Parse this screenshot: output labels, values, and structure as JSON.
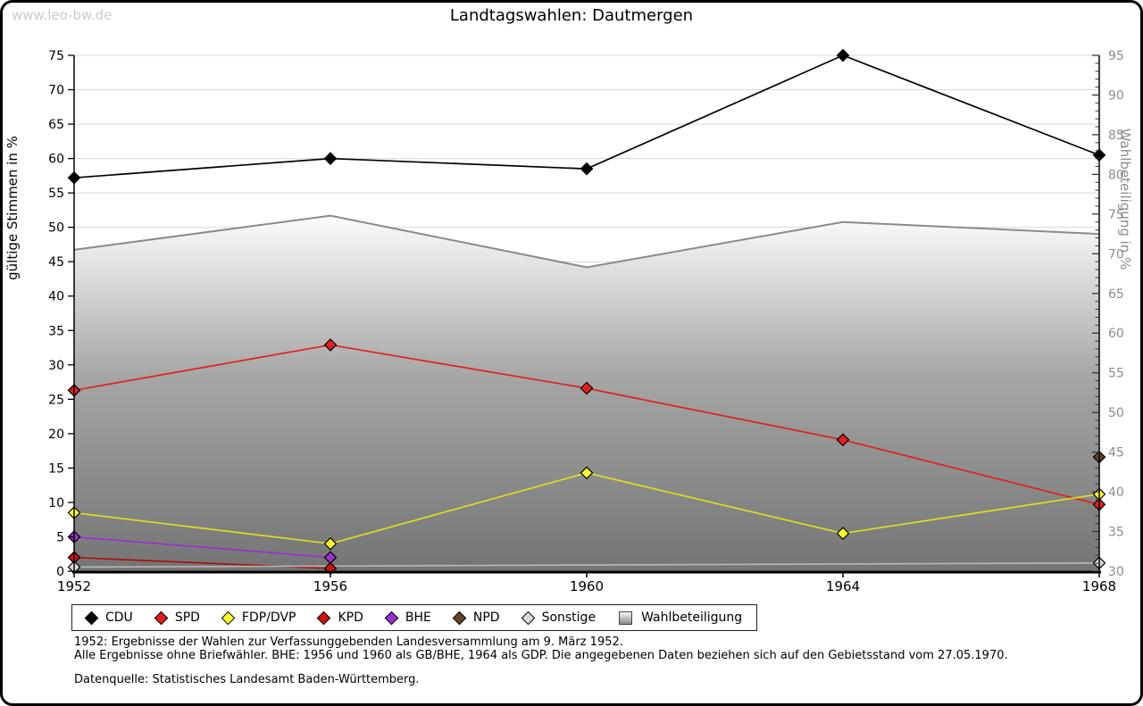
{
  "watermark": "www.leo-bw.de",
  "title": "Landtagswahlen: Dautmergen",
  "footnotes": {
    "line1": "1952: Ergebnisse der Wahlen zur Verfassunggebenden Landesversammlung am 9. März 1952.",
    "line2": "Alle Ergebnisse ohne Briefwähler. BHE: 1956 und 1960 als GB/BHE, 1964 als GDP. Die angegebenen Daten beziehen sich auf den Gebietsstand vom 27.05.1970.",
    "source": "Datenquelle: Statistisches Landesamt Baden-Württemberg."
  },
  "colors": {
    "background": "#ffffff",
    "frame": "#000000",
    "watermark": "#cbcbcb",
    "grid": "#d9d9d9",
    "axis": "#000000",
    "right_axis_text": "#8c8c8c",
    "turnout_line": "#8a8a8a"
  },
  "chart_data": {
    "type": "line",
    "title": "Landtagswahlen: Dautmergen",
    "x": [
      "1952",
      "1956",
      "1960",
      "1964",
      "1968"
    ],
    "left_axis": {
      "label": "gültige Stimmen in %",
      "min": 0,
      "max": 75,
      "tick_step": 5
    },
    "right_axis": {
      "label": "Wahlbeteiligung in %",
      "min": 30,
      "max": 95,
      "tick_step": 5,
      "minor_step": 1
    },
    "grid": "horizontal, every 5 of left axis",
    "legend_position": "bottom",
    "series": [
      {
        "name": "CDU",
        "axis": "left",
        "color": "#000000",
        "marker_fill": "#000000",
        "values": [
          57.2,
          60.0,
          58.5,
          75.0,
          60.5
        ]
      },
      {
        "name": "SPD",
        "axis": "left",
        "color": "#e02020",
        "marker_fill": "#e02020",
        "values": [
          26.3,
          32.9,
          26.6,
          19.1,
          9.7
        ]
      },
      {
        "name": "FDP/DVP",
        "axis": "left",
        "color": "#dede20",
        "marker_fill": "#ffff33",
        "values": [
          8.5,
          4.0,
          14.3,
          5.5,
          11.2
        ]
      },
      {
        "name": "KPD",
        "axis": "left",
        "color": "#aa1111",
        "marker_fill": "#cc1111",
        "values": [
          2.0,
          0.4,
          null,
          null,
          null
        ]
      },
      {
        "name": "BHE",
        "axis": "left",
        "color": "#9932cc",
        "marker_fill": "#9932cc",
        "values": [
          5.0,
          2.0,
          null,
          null,
          null
        ]
      },
      {
        "name": "NPD",
        "axis": "left",
        "color": "#63452c",
        "marker_fill": "#63452c",
        "values": [
          null,
          null,
          null,
          null,
          16.6
        ]
      },
      {
        "name": "Sonstige",
        "axis": "left",
        "color": "#b5b5b5",
        "marker_fill": "#d9d9d9",
        "values": [
          0.6,
          null,
          null,
          null,
          1.2
        ]
      },
      {
        "name": "Wahlbeteiligung",
        "axis": "right",
        "type": "area",
        "color": "#8a8a8a",
        "area_gradient": [
          "#fcfcfc",
          "#a6a6a6",
          "#747474"
        ],
        "values": [
          70.5,
          74.8,
          68.3,
          74.0,
          72.5
        ]
      }
    ]
  }
}
